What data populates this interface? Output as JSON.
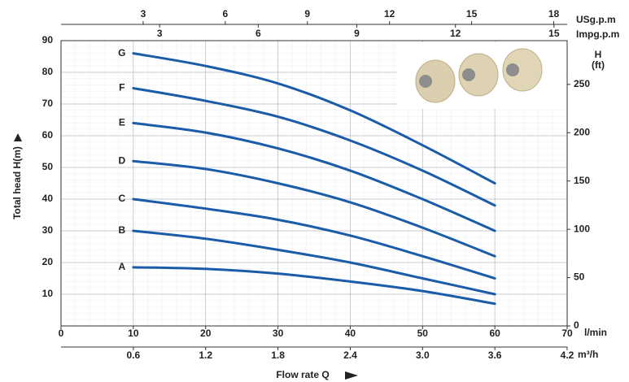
{
  "chart_data": {
    "type": "line",
    "x_label": "Flow rate Q",
    "x_unit": "l/min",
    "y_label": "Total head H(m)",
    "y2_label": "H",
    "y2_unit": "(ft)",
    "x": [
      10,
      20,
      30,
      40,
      50,
      60
    ],
    "xlim": [
      0,
      70
    ],
    "xticks": [
      0,
      10,
      20,
      30,
      40,
      50,
      60,
      70
    ],
    "ylim": [
      0,
      90
    ],
    "yticks": [
      10,
      20,
      30,
      40,
      50,
      60,
      70,
      80,
      90
    ],
    "y2lim": [
      0,
      295.3
    ],
    "y2ticks": [
      0,
      50,
      100,
      150,
      200,
      250
    ],
    "top_axes": [
      {
        "label": "USg.p.m",
        "lim": [
          0,
          18.49
        ],
        "ticks": [
          3,
          6,
          9,
          12,
          15,
          18
        ]
      },
      {
        "label": "Impg.p.m",
        "lim": [
          0,
          15.4
        ],
        "ticks": [
          3,
          6,
          9,
          12,
          15
        ]
      }
    ],
    "x2": {
      "label": "m³/h",
      "lim": [
        0,
        4.2
      ],
      "ticks": [
        0.6,
        1.2,
        1.8,
        2.4,
        {
          "value": 3,
          "label": "3.0"
        },
        3.6,
        4.2
      ]
    },
    "grid": true,
    "series": [
      {
        "name": "G",
        "color": "#1b5ca8",
        "values": [
          86,
          82,
          76.5,
          68,
          57,
          45
        ]
      },
      {
        "name": "F",
        "color": "#1b5ca8",
        "values": [
          75,
          71,
          66,
          58.5,
          49,
          38
        ]
      },
      {
        "name": "E",
        "color": "#1b5ca8",
        "values": [
          64,
          61,
          56,
          49,
          40,
          30
        ]
      },
      {
        "name": "D",
        "color": "#1b5ca8",
        "values": [
          52,
          49.5,
          45,
          39,
          31,
          22
        ]
      },
      {
        "name": "C",
        "color": "#1b5ca8",
        "values": [
          40,
          37,
          33.5,
          28.5,
          22,
          15
        ]
      },
      {
        "name": "B",
        "color": "#1b5ca8",
        "values": [
          30,
          27.5,
          24,
          20,
          15,
          10
        ]
      },
      {
        "name": "A",
        "color": "#1b5ca8",
        "values": [
          18.5,
          18,
          16.5,
          14,
          11,
          7
        ]
      }
    ]
  }
}
